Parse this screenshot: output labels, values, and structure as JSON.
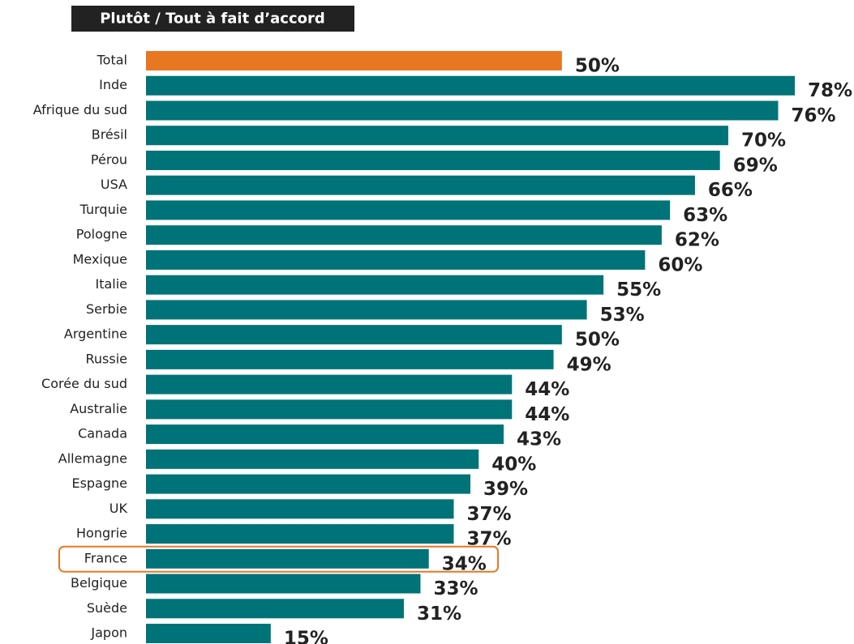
{
  "chart_data": {
    "type": "bar",
    "orientation": "horizontal",
    "title": "Plutôt / Tout à fait d’accord",
    "categories": [
      "Total",
      "Inde",
      "Afrique du sud",
      "Brésil",
      "Pérou",
      "USA",
      "Turquie",
      "Pologne",
      "Mexique",
      "Italie",
      "Serbie",
      "Argentine",
      "Russie",
      "Corée du sud",
      "Australie",
      "Canada",
      "Allemagne",
      "Espagne",
      "UK",
      "Hongrie",
      "France",
      "Belgique",
      "Suède",
      "Japon"
    ],
    "values": [
      50,
      78,
      76,
      70,
      69,
      66,
      63,
      62,
      60,
      55,
      53,
      50,
      49,
      44,
      44,
      43,
      40,
      39,
      37,
      37,
      34,
      33,
      31,
      15
    ],
    "value_labels": [
      "50%",
      "78%",
      "76%",
      "70%",
      "69%",
      "66%",
      "63%",
      "62%",
      "60%",
      "55%",
      "53%",
      "50%",
      "49%",
      "44%",
      "44%",
      "43%",
      "40%",
      "39%",
      "37%",
      "37%",
      "34%",
      "33%",
      "31%",
      "15%"
    ],
    "colors": [
      "#e87722",
      "#007378",
      "#007378",
      "#007378",
      "#007378",
      "#007378",
      "#007378",
      "#007378",
      "#007378",
      "#007378",
      "#007378",
      "#007378",
      "#007378",
      "#007378",
      "#007378",
      "#007378",
      "#007378",
      "#007378",
      "#007378",
      "#007378",
      "#007378",
      "#007378",
      "#007378",
      "#007378"
    ],
    "highlight": "France",
    "highlight_color": "#e87722"
  }
}
